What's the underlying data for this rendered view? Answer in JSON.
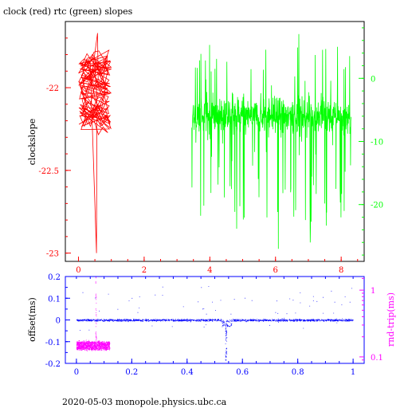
{
  "footer": "2020-05-03  monopole.physics.ubc.ca",
  "colors": {
    "red": "#ff0000",
    "green": "#00ff00",
    "blue": "#0000ff",
    "magenta": "#ff00ff",
    "black": "#000000"
  },
  "chart_data": [
    {
      "type": "line",
      "title": "clock (red) rtc (green) slopes",
      "ylabel": "clockslope",
      "xlim": [
        -0.4,
        8.7
      ],
      "ylim_left": [
        -23.05,
        -21.6
      ],
      "ylim_right": [
        -29,
        9
      ],
      "x_ticks": [
        "0",
        "2",
        "4",
        "6",
        "8"
      ],
      "y_ticks_left": [
        "-22",
        "-22.5",
        "-23"
      ],
      "y_ticks_right": [
        "0",
        "-10",
        "-20"
      ],
      "series": [
        {
          "color": "#ff0000",
          "axis": "left",
          "x_range": [
            0.0,
            1.0
          ],
          "typical_range": [
            -22.25,
            -21.8
          ],
          "extremes": {
            "min": -23.0,
            "max": -21.67
          }
        },
        {
          "color": "#00ff00",
          "axis": "right",
          "x_range": [
            3.45,
            8.3
          ],
          "typical_range": [
            -13,
            -1
          ],
          "extremes": {
            "min": -27,
            "max": 7
          }
        }
      ]
    },
    {
      "type": "scatter",
      "ylabel_left": "offset(ms)",
      "ylabel_right": "rnd-trip(ms)",
      "xlim": [
        -0.04,
        1.04
      ],
      "ylim_left": [
        -0.2,
        0.2
      ],
      "right_scale": "log",
      "ylim_right": [
        0.08,
        1.6
      ],
      "x_ticks": [
        "0",
        "0.2",
        "0.4",
        "0.6",
        "0.8",
        "1"
      ],
      "y_ticks_left": [
        "0.2",
        "0.1",
        "0",
        "-0.1",
        "-0.2"
      ],
      "y_ticks_right": [
        "1",
        "0.1"
      ],
      "series": [
        {
          "color": "#0000ff",
          "axis": "left",
          "x_range": [
            0.0,
            1.0
          ],
          "typical_range": [
            -0.01,
            0.01
          ],
          "dip": {
            "x": 0.54,
            "min": -0.19
          }
        },
        {
          "color": "#ff00ff",
          "axis": "right",
          "x_range": [
            0.0,
            0.12
          ],
          "typical_range": [
            0.13,
            0.17
          ],
          "spike": {
            "x": 0.07,
            "max": 1.7
          }
        }
      ]
    }
  ]
}
